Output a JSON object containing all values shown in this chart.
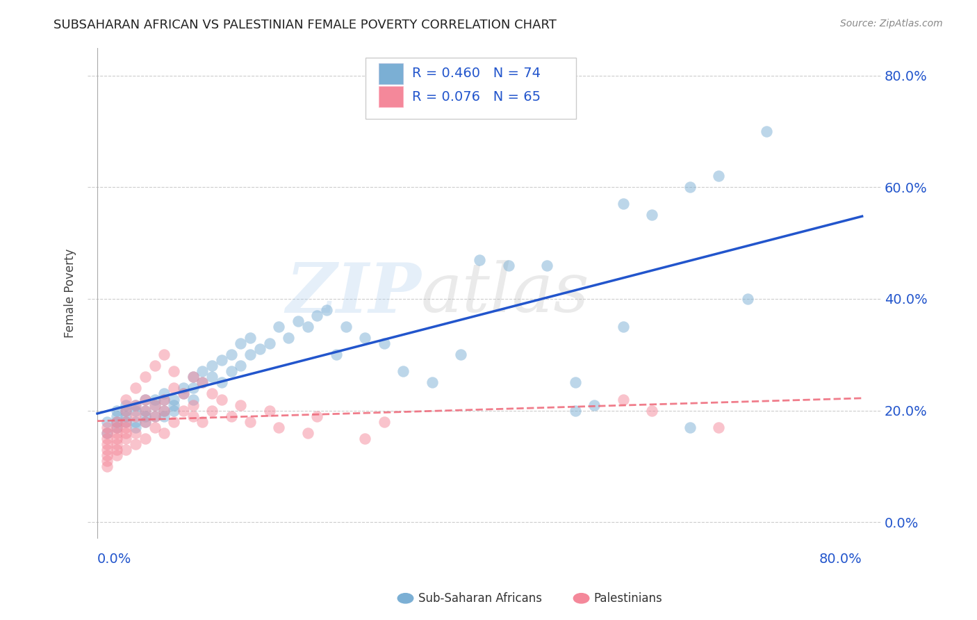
{
  "title": "SUBSAHARAN AFRICAN VS PALESTINIAN FEMALE POVERTY CORRELATION CHART",
  "source": "Source: ZipAtlas.com",
  "ylabel": "Female Poverty",
  "ytick_labels": [
    "0.0%",
    "20.0%",
    "40.0%",
    "60.0%",
    "80.0%"
  ],
  "ytick_values": [
    0.0,
    0.2,
    0.4,
    0.6,
    0.8
  ],
  "xlim": [
    -0.01,
    0.82
  ],
  "ylim": [
    -0.03,
    0.85
  ],
  "color_blue": "#7BAFD4",
  "color_pink": "#F4889A",
  "color_blue_line": "#2255CC",
  "color_pink_line": "#EE6677",
  "watermark_zip": "ZIP",
  "watermark_atlas": "atlas",
  "sub_saharan_x": [
    0.01,
    0.01,
    0.02,
    0.02,
    0.02,
    0.02,
    0.03,
    0.03,
    0.03,
    0.03,
    0.04,
    0.04,
    0.04,
    0.04,
    0.05,
    0.05,
    0.05,
    0.05,
    0.06,
    0.06,
    0.06,
    0.07,
    0.07,
    0.07,
    0.07,
    0.08,
    0.08,
    0.08,
    0.09,
    0.09,
    0.1,
    0.1,
    0.1,
    0.11,
    0.11,
    0.12,
    0.12,
    0.13,
    0.13,
    0.14,
    0.14,
    0.15,
    0.15,
    0.16,
    0.16,
    0.17,
    0.18,
    0.19,
    0.2,
    0.21,
    0.22,
    0.23,
    0.24,
    0.25,
    0.26,
    0.28,
    0.3,
    0.32,
    0.35,
    0.38,
    0.4,
    0.43,
    0.47,
    0.5,
    0.52,
    0.55,
    0.58,
    0.62,
    0.65,
    0.68,
    0.5,
    0.55,
    0.62,
    0.7
  ],
  "sub_saharan_y": [
    0.18,
    0.16,
    0.2,
    0.18,
    0.17,
    0.19,
    0.19,
    0.21,
    0.18,
    0.2,
    0.18,
    0.2,
    0.17,
    0.21,
    0.19,
    0.22,
    0.18,
    0.2,
    0.21,
    0.19,
    0.22,
    0.2,
    0.22,
    0.19,
    0.23,
    0.21,
    0.22,
    0.2,
    0.23,
    0.24,
    0.22,
    0.24,
    0.26,
    0.25,
    0.27,
    0.26,
    0.28,
    0.25,
    0.29,
    0.27,
    0.3,
    0.28,
    0.32,
    0.3,
    0.33,
    0.31,
    0.32,
    0.35,
    0.33,
    0.36,
    0.35,
    0.37,
    0.38,
    0.3,
    0.35,
    0.33,
    0.32,
    0.27,
    0.25,
    0.3,
    0.47,
    0.46,
    0.46,
    0.2,
    0.21,
    0.57,
    0.55,
    0.6,
    0.62,
    0.4,
    0.25,
    0.35,
    0.17,
    0.7
  ],
  "palestinian_x": [
    0.01,
    0.01,
    0.01,
    0.01,
    0.01,
    0.01,
    0.01,
    0.01,
    0.02,
    0.02,
    0.02,
    0.02,
    0.02,
    0.02,
    0.02,
    0.03,
    0.03,
    0.03,
    0.03,
    0.03,
    0.03,
    0.03,
    0.04,
    0.04,
    0.04,
    0.04,
    0.04,
    0.05,
    0.05,
    0.05,
    0.05,
    0.05,
    0.06,
    0.06,
    0.06,
    0.06,
    0.07,
    0.07,
    0.07,
    0.07,
    0.08,
    0.08,
    0.08,
    0.09,
    0.09,
    0.1,
    0.1,
    0.1,
    0.11,
    0.11,
    0.12,
    0.12,
    0.13,
    0.14,
    0.15,
    0.16,
    0.18,
    0.19,
    0.22,
    0.23,
    0.28,
    0.3,
    0.55,
    0.58,
    0.65
  ],
  "palestinian_y": [
    0.14,
    0.16,
    0.12,
    0.13,
    0.15,
    0.1,
    0.17,
    0.11,
    0.15,
    0.17,
    0.13,
    0.16,
    0.12,
    0.18,
    0.14,
    0.16,
    0.18,
    0.13,
    0.2,
    0.15,
    0.22,
    0.17,
    0.19,
    0.14,
    0.21,
    0.16,
    0.24,
    0.18,
    0.2,
    0.15,
    0.22,
    0.26,
    0.17,
    0.19,
    0.21,
    0.28,
    0.2,
    0.22,
    0.16,
    0.3,
    0.24,
    0.18,
    0.27,
    0.2,
    0.23,
    0.19,
    0.21,
    0.26,
    0.18,
    0.25,
    0.2,
    0.23,
    0.22,
    0.19,
    0.21,
    0.18,
    0.2,
    0.17,
    0.16,
    0.19,
    0.15,
    0.18,
    0.22,
    0.2,
    0.17
  ]
}
